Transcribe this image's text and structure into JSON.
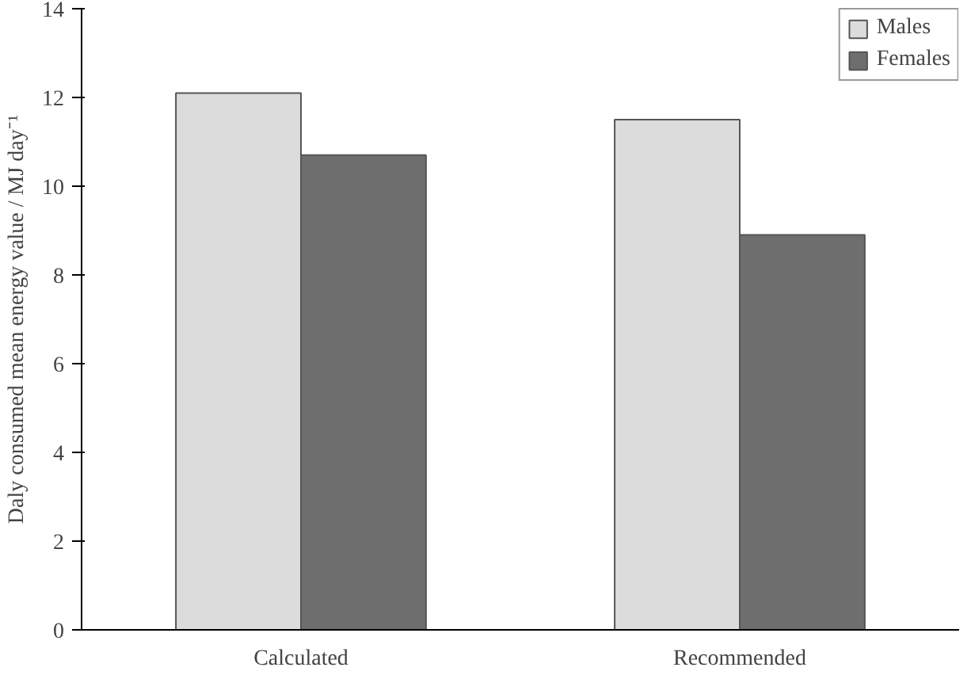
{
  "chart_data": {
    "type": "bar",
    "ylabel": "Daly consumed mean energy value / MJ day⁻¹",
    "categories": [
      "Calculated",
      "Recommended"
    ],
    "series": [
      {
        "name": "Males",
        "color": "#dcdcdc",
        "values": [
          12.1,
          11.5
        ]
      },
      {
        "name": "Females",
        "color": "#6e6e6e",
        "values": [
          10.7,
          8.9
        ]
      }
    ],
    "ylim": [
      0,
      14
    ],
    "yticks": [
      0,
      2,
      4,
      6,
      8,
      10,
      12,
      14
    ],
    "grid": false,
    "legend": "top right"
  }
}
